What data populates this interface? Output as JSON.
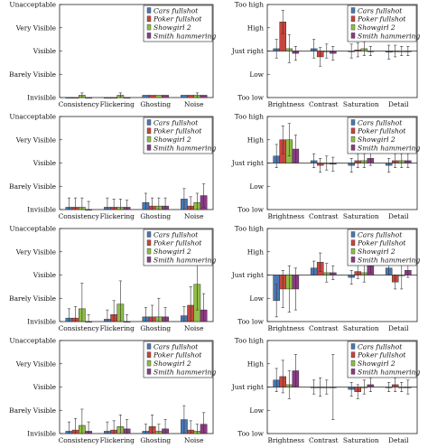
{
  "legend_items": [
    "Cars fullshot",
    "Poker fullshot",
    "Showgirl 2",
    "Smith hammering"
  ],
  "colors": {
    "Cars fullshot": "#4b78b5",
    "Poker fullshot": "#c8453d",
    "Showgirl 2": "#8fbd45",
    "Smith hammering": "#8c3a86"
  },
  "chart_data": [
    {
      "type": "bar",
      "panel": "row1-left",
      "categories": [
        "Consistency",
        "Flickering",
        "Ghosting",
        "Noise"
      ],
      "y_levels": [
        "Invisible",
        "Barely Visible",
        "Visible",
        "Very Visible",
        "Unacceptable"
      ],
      "ylim": [
        0,
        4
      ],
      "legend_position": "top-right",
      "series": [
        {
          "name": "Cars fullshot",
          "values": [
            0,
            0,
            0.1,
            0.1
          ],
          "err": [
            0,
            0,
            0,
            0
          ]
        },
        {
          "name": "Poker fullshot",
          "values": [
            0,
            0,
            0.1,
            0.1
          ],
          "err": [
            0,
            0,
            0,
            0
          ]
        },
        {
          "name": "Showgirl 2",
          "values": [
            0.1,
            0.1,
            0.1,
            0.1
          ],
          "err": [
            0.1,
            0.1,
            0,
            0.1
          ]
        },
        {
          "name": "Smith hammering",
          "values": [
            0,
            0,
            0.1,
            0.1
          ],
          "err": [
            0,
            0,
            0,
            0
          ]
        }
      ]
    },
    {
      "type": "bar",
      "panel": "row1-right",
      "categories": [
        "Brightness",
        "Contrast",
        "Saturation",
        "Detail"
      ],
      "y_levels": [
        "Too low",
        "Low",
        "Just right",
        "High",
        "Too high"
      ],
      "ylim": [
        -2,
        2
      ],
      "baseline": 0,
      "legend_position": "top-right",
      "series": [
        {
          "name": "Cars fullshot",
          "values": [
            0.1,
            0.1,
            0,
            -0.05
          ],
          "err": [
            0.4,
            0.4,
            0.3,
            0.3
          ]
        },
        {
          "name": "Poker fullshot",
          "values": [
            1.25,
            -0.25,
            0.05,
            0
          ],
          "err": [
            0.5,
            0.4,
            0.3,
            0.25
          ]
        },
        {
          "name": "Showgirl 2",
          "values": [
            0.1,
            0,
            0.1,
            0
          ],
          "err": [
            0.6,
            0.3,
            0.3,
            0.2
          ]
        },
        {
          "name": "Smith hammering",
          "values": [
            -0.1,
            -0.1,
            0,
            0
          ],
          "err": [
            0.3,
            0.3,
            0.2,
            0.2
          ]
        }
      ]
    },
    {
      "type": "bar",
      "panel": "row2-left",
      "categories": [
        "Consistency",
        "Flickering",
        "Ghosting",
        "Noise"
      ],
      "y_levels": [
        "Invisible",
        "Barely Visible",
        "Visible",
        "Very Visible",
        "Unacceptable"
      ],
      "ylim": [
        0,
        4
      ],
      "legend_position": "top-right",
      "series": [
        {
          "name": "Cars fullshot",
          "values": [
            0.1,
            0.1,
            0.3,
            0.45
          ],
          "err": [
            0.4,
            0.4,
            0.4,
            0.45
          ]
        },
        {
          "name": "Poker fullshot",
          "values": [
            0.1,
            0.1,
            0.15,
            0.15
          ],
          "err": [
            0.4,
            0.35,
            0.35,
            0.4
          ]
        },
        {
          "name": "Showgirl 2",
          "values": [
            0.1,
            0.1,
            0.15,
            0.3
          ],
          "err": [
            0.4,
            0.35,
            0.35,
            0.4
          ]
        },
        {
          "name": "Smith hammering",
          "values": [
            0,
            0.1,
            0.15,
            0.6
          ],
          "err": [
            0.35,
            0.3,
            0.35,
            0.5
          ]
        }
      ]
    },
    {
      "type": "bar",
      "panel": "row2-right",
      "categories": [
        "Brightness",
        "Contrast",
        "Saturation",
        "Detail"
      ],
      "y_levels": [
        "Too low",
        "Low",
        "Just right",
        "High",
        "Too high"
      ],
      "ylim": [
        -2,
        2
      ],
      "baseline": 0,
      "legend_position": "top-right",
      "series": [
        {
          "name": "Cars fullshot",
          "values": [
            0.3,
            0.1,
            -0.1,
            -0.1
          ],
          "err": [
            0.5,
            0.3,
            0.3,
            0.3
          ]
        },
        {
          "name": "Poker fullshot",
          "values": [
            1.0,
            -0.1,
            0.1,
            0.1
          ],
          "err": [
            0.6,
            0.3,
            0.3,
            0.3
          ]
        },
        {
          "name": "Showgirl 2",
          "values": [
            1.0,
            0,
            0.1,
            0.1
          ],
          "err": [
            0.7,
            0.3,
            0.3,
            0.3
          ]
        },
        {
          "name": "Smith hammering",
          "values": [
            0.6,
            -0.05,
            0.2,
            0.1
          ],
          "err": [
            0.6,
            0.3,
            0.3,
            0.3
          ]
        }
      ]
    },
    {
      "type": "bar",
      "panel": "row3-left",
      "categories": [
        "Consistency",
        "Flickering",
        "Ghosting",
        "Noise"
      ],
      "y_levels": [
        "Invisible",
        "Barely Visible",
        "Visible",
        "Very Visible",
        "Unacceptable"
      ],
      "ylim": [
        0,
        4
      ],
      "legend_position": "top-right",
      "series": [
        {
          "name": "Cars fullshot",
          "values": [
            0.15,
            0.1,
            0.2,
            0.25
          ],
          "err": [
            0.4,
            0.4,
            0.4,
            0.4
          ]
        },
        {
          "name": "Poker fullshot",
          "values": [
            0.15,
            0.3,
            0.2,
            0.7
          ],
          "err": [
            0.5,
            0.6,
            0.5,
            0.8
          ]
        },
        {
          "name": "Showgirl 2",
          "values": [
            0.55,
            0.75,
            0.2,
            1.6
          ],
          "err": [
            1.1,
            1.0,
            0.8,
            1.1
          ]
        },
        {
          "name": "Smith hammering",
          "values": [
            0,
            0,
            0.2,
            0.5
          ],
          "err": [
            0.3,
            0.3,
            0.4,
            0.7
          ]
        }
      ]
    },
    {
      "type": "bar",
      "panel": "row3-right",
      "categories": [
        "Brightness",
        "Contrast",
        "Saturation",
        "Detail"
      ],
      "y_levels": [
        "Too low",
        "Low",
        "Just right",
        "High",
        "Too high"
      ],
      "ylim": [
        -2,
        2
      ],
      "baseline": 0,
      "legend_position": "top-right",
      "series": [
        {
          "name": "Cars fullshot",
          "values": [
            -1.1,
            0.3,
            -0.1,
            0.3
          ],
          "err": [
            0.7,
            0.3,
            0.3,
            0.3
          ]
        },
        {
          "name": "Poker fullshot",
          "values": [
            -0.6,
            0.55,
            0.15,
            -0.3
          ],
          "err": [
            0.8,
            0.4,
            0.3,
            0.3
          ]
        },
        {
          "name": "Showgirl 2",
          "values": [
            -0.6,
            0.1,
            0.1,
            0
          ],
          "err": [
            1.0,
            0.4,
            0.4,
            0.6
          ]
        },
        {
          "name": "Smith hammering",
          "values": [
            -0.6,
            0.1,
            0.4,
            0.2
          ],
          "err": [
            0.9,
            0.3,
            0.3,
            0.3
          ]
        }
      ]
    },
    {
      "type": "bar",
      "panel": "row4-left",
      "categories": [
        "Consistency",
        "Flickering",
        "Ghosting",
        "Noise"
      ],
      "y_levels": [
        "Invisible",
        "Barely Visible",
        "Visible",
        "Very Visible",
        "Unacceptable"
      ],
      "ylim": [
        0,
        4
      ],
      "legend_position": "top-right",
      "series": [
        {
          "name": "Cars fullshot",
          "values": [
            0.1,
            0.1,
            0.1,
            0.6
          ],
          "err": [
            0.4,
            0.4,
            0.3,
            0.6
          ]
        },
        {
          "name": "Poker fullshot",
          "values": [
            0.15,
            0.15,
            0.3,
            0.15
          ],
          "err": [
            0.5,
            0.4,
            0.5,
            0.4
          ]
        },
        {
          "name": "Showgirl 2",
          "values": [
            0.35,
            0.3,
            0.1,
            0.1
          ],
          "err": [
            0.7,
            0.5,
            0.3,
            0.3
          ]
        },
        {
          "name": "Smith hammering",
          "values": [
            0.1,
            0.2,
            0.2,
            0.4
          ],
          "err": [
            0.4,
            0.4,
            0.4,
            0.5
          ]
        }
      ]
    },
    {
      "type": "bar",
      "panel": "row4-right",
      "categories": [
        "Brightness",
        "Contrast",
        "Saturation",
        "Detail"
      ],
      "y_levels": [
        "Too low",
        "Low",
        "Just right",
        "High",
        "Too high"
      ],
      "ylim": [
        -2,
        2
      ],
      "baseline": 0,
      "legend_position": "top-right",
      "series": [
        {
          "name": "Cars fullshot",
          "values": [
            0.3,
            0,
            -0.1,
            0
          ],
          "err": [
            0.5,
            0.3,
            0.3,
            0.2
          ]
        },
        {
          "name": "Poker fullshot",
          "values": [
            0.45,
            0,
            -0.2,
            0.1
          ],
          "err": [
            0.7,
            0.4,
            0.3,
            0.3
          ]
        },
        {
          "name": "Showgirl 2",
          "values": [
            0.1,
            0,
            0,
            0
          ],
          "err": [
            0.6,
            0.3,
            0.3,
            0.2
          ]
        },
        {
          "name": "Smith hammering",
          "values": [
            0.7,
            0,
            0.1,
            0
          ],
          "err": [
            0.7,
            1.4,
            0.3,
            0.3
          ]
        }
      ]
    }
  ]
}
